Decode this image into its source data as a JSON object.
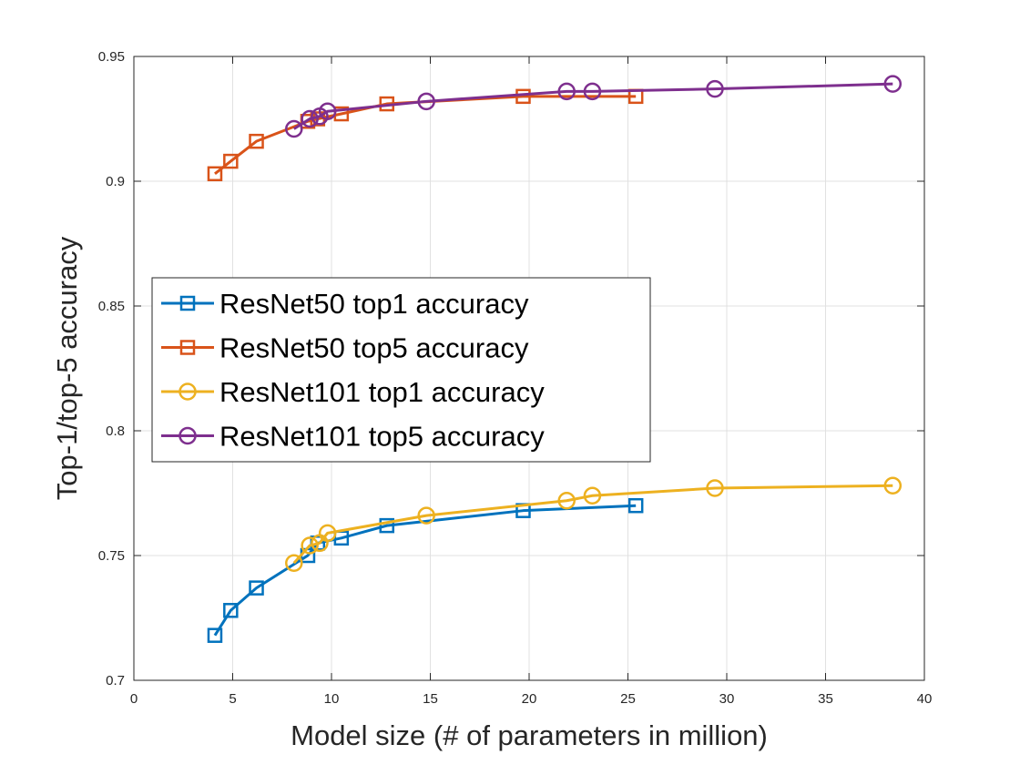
{
  "chart_data": {
    "type": "line",
    "title": "",
    "xlabel": "Model size (# of parameters in million)",
    "ylabel": "Top-1/top-5 accuracy",
    "xlim": [
      0,
      40
    ],
    "ylim": [
      0.7,
      0.95
    ],
    "xticks": [
      0,
      5,
      10,
      15,
      20,
      25,
      30,
      35,
      40
    ],
    "xtick_labels": [
      "0",
      "5",
      "10",
      "15",
      "20",
      "25",
      "30",
      "35",
      "40"
    ],
    "yticks": [
      0.7,
      0.75,
      0.8,
      0.85,
      0.9,
      0.95
    ],
    "ytick_labels": [
      "0.7",
      "0.75",
      "0.8",
      "0.85",
      "0.9",
      "0.95"
    ],
    "grid": true,
    "legend_position": "middle-left",
    "series": [
      {
        "name": "ResNet50 top1 accuracy",
        "color": "#0072BD",
        "marker": "square",
        "x": [
          4.1,
          4.9,
          6.2,
          8.8,
          9.3,
          10.5,
          12.8,
          19.7,
          25.4
        ],
        "y": [
          0.718,
          0.728,
          0.737,
          0.75,
          0.755,
          0.757,
          0.762,
          0.768,
          0.77
        ]
      },
      {
        "name": "ResNet50 top5 accuracy",
        "color": "#D95319",
        "marker": "square",
        "x": [
          4.1,
          4.9,
          6.2,
          8.8,
          9.3,
          10.5,
          12.8,
          19.7,
          25.4
        ],
        "y": [
          0.903,
          0.908,
          0.916,
          0.924,
          0.925,
          0.927,
          0.931,
          0.934,
          0.934
        ]
      },
      {
        "name": "ResNet101 top1 accuracy",
        "color": "#EDB120",
        "marker": "circle",
        "x": [
          8.1,
          8.9,
          9.4,
          9.8,
          14.8,
          21.9,
          23.2,
          29.4,
          38.4
        ],
        "y": [
          0.747,
          0.754,
          0.755,
          0.759,
          0.766,
          0.772,
          0.774,
          0.777,
          0.778
        ]
      },
      {
        "name": "ResNet101 top5 accuracy",
        "color": "#7E2F8E",
        "marker": "circle",
        "x": [
          8.1,
          8.9,
          9.4,
          9.8,
          14.8,
          21.9,
          23.2,
          29.4,
          38.4
        ],
        "y": [
          0.921,
          0.925,
          0.926,
          0.928,
          0.932,
          0.936,
          0.936,
          0.937,
          0.939
        ]
      }
    ]
  }
}
